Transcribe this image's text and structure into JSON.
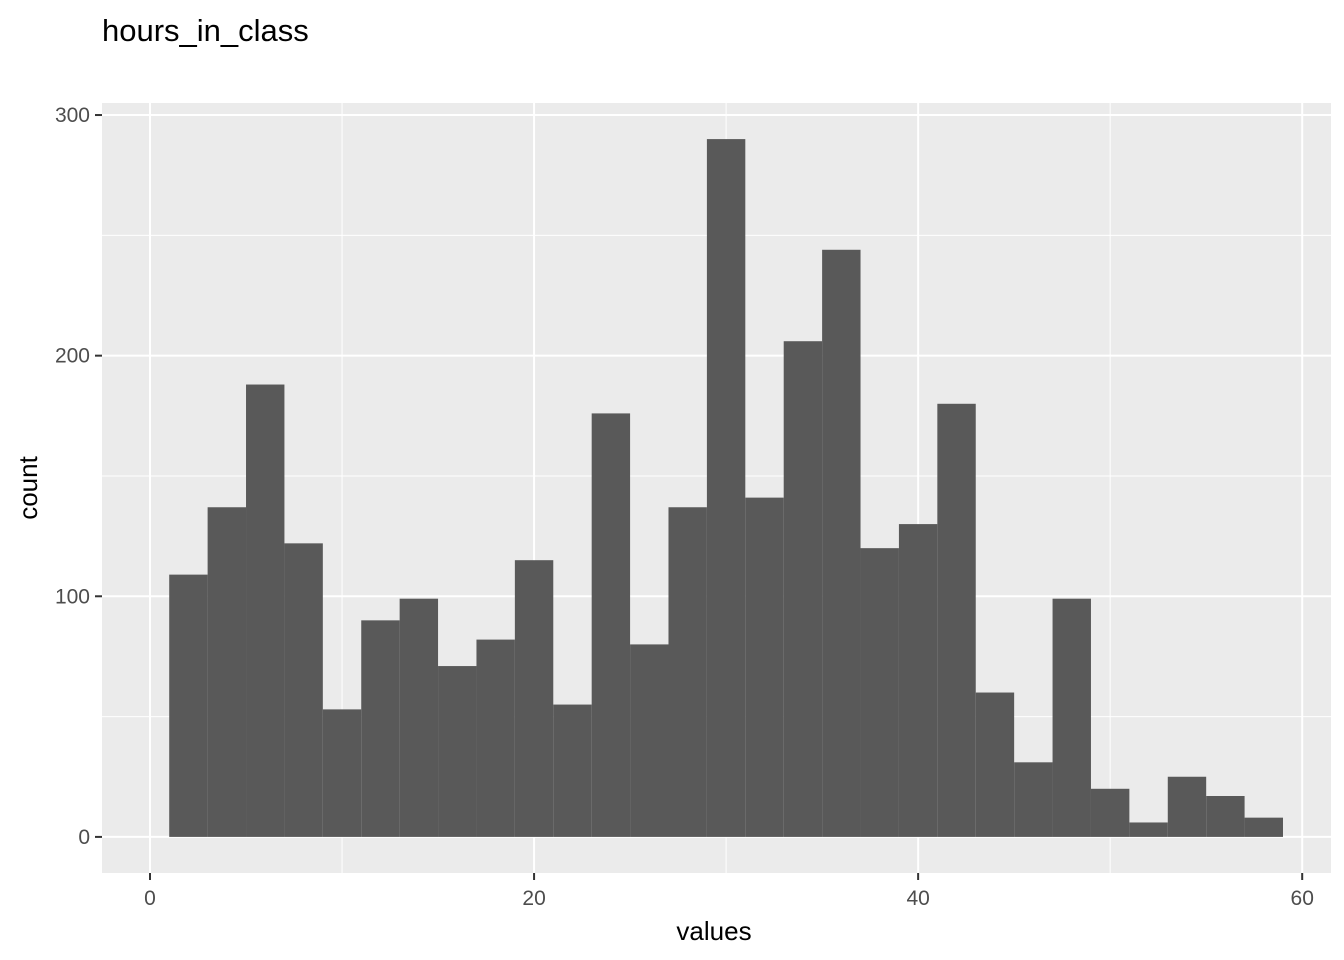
{
  "chart_data": {
    "type": "bar",
    "title": "hours_in_class",
    "xlabel": "values",
    "ylabel": "count",
    "xlim": [
      -2.5,
      61.5
    ],
    "ylim": [
      -15,
      305
    ],
    "x_ticks": [
      0,
      20,
      40,
      60
    ],
    "y_ticks": [
      0,
      100,
      200,
      300
    ],
    "grid": true,
    "bin_width": 2,
    "bins": [
      {
        "x_start": 1,
        "x_end": 3,
        "count": 109
      },
      {
        "x_start": 3,
        "x_end": 5,
        "count": 137
      },
      {
        "x_start": 5,
        "x_end": 7,
        "count": 188
      },
      {
        "x_start": 7,
        "x_end": 9,
        "count": 122
      },
      {
        "x_start": 9,
        "x_end": 11,
        "count": 53
      },
      {
        "x_start": 11,
        "x_end": 13,
        "count": 90
      },
      {
        "x_start": 13,
        "x_end": 15,
        "count": 99
      },
      {
        "x_start": 15,
        "x_end": 17,
        "count": 71
      },
      {
        "x_start": 17,
        "x_end": 19,
        "count": 82
      },
      {
        "x_start": 19,
        "x_end": 21,
        "count": 115
      },
      {
        "x_start": 21,
        "x_end": 23,
        "count": 55
      },
      {
        "x_start": 23,
        "x_end": 25,
        "count": 176
      },
      {
        "x_start": 25,
        "x_end": 27,
        "count": 80
      },
      {
        "x_start": 27,
        "x_end": 29,
        "count": 137
      },
      {
        "x_start": 29,
        "x_end": 31,
        "count": 290
      },
      {
        "x_start": 31,
        "x_end": 33,
        "count": 141
      },
      {
        "x_start": 33,
        "x_end": 35,
        "count": 206
      },
      {
        "x_start": 35,
        "x_end": 37,
        "count": 244
      },
      {
        "x_start": 37,
        "x_end": 39,
        "count": 120
      },
      {
        "x_start": 39,
        "x_end": 41,
        "count": 130
      },
      {
        "x_start": 41,
        "x_end": 43,
        "count": 180
      },
      {
        "x_start": 43,
        "x_end": 45,
        "count": 60
      },
      {
        "x_start": 45,
        "x_end": 47,
        "count": 31
      },
      {
        "x_start": 47,
        "x_end": 49,
        "count": 99
      },
      {
        "x_start": 49,
        "x_end": 51,
        "count": 20
      },
      {
        "x_start": 51,
        "x_end": 53,
        "count": 6
      },
      {
        "x_start": 53,
        "x_end": 55,
        "count": 25
      },
      {
        "x_start": 55,
        "x_end": 57,
        "count": 17
      },
      {
        "x_start": 57,
        "x_end": 59,
        "count": 8
      }
    ],
    "colors": {
      "bar_fill": "#595959",
      "panel_background": "#ebebeb",
      "grid_major": "#ffffff",
      "tick_text": "#4d4d4d",
      "tick_mark": "#333333"
    }
  }
}
